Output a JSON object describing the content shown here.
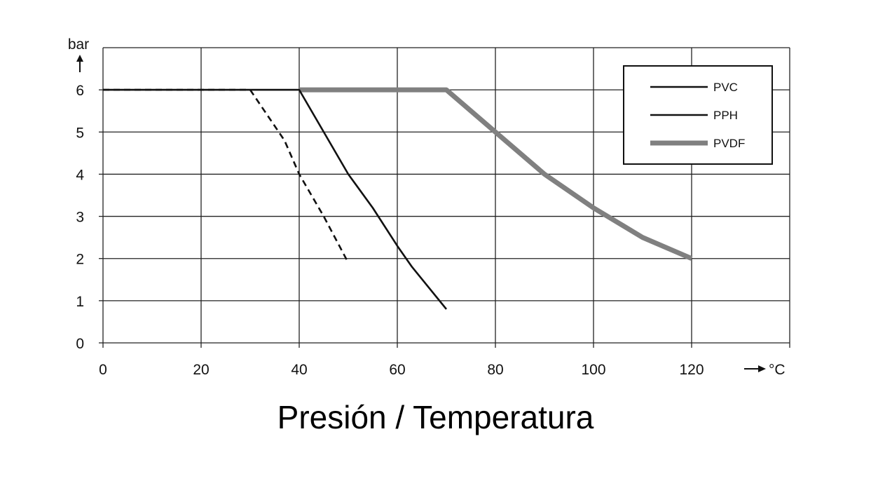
{
  "chart_data": {
    "type": "line",
    "title": "Presión / Temperatura",
    "ylabel": "bar",
    "xlabel": "°C",
    "xlim": [
      0,
      140
    ],
    "ylim": [
      0,
      7
    ],
    "xticks": [
      0,
      20,
      40,
      60,
      80,
      100,
      120
    ],
    "yticks": [
      0,
      1,
      2,
      3,
      4,
      5,
      6
    ],
    "grid": true,
    "legend_position": "top-right",
    "series": [
      {
        "name": "PVC",
        "color": "#111111",
        "style": "dashed",
        "points": [
          [
            0,
            6
          ],
          [
            30,
            6
          ],
          [
            37,
            4.8
          ],
          [
            40,
            4
          ],
          [
            45,
            3
          ],
          [
            50,
            1.9
          ]
        ]
      },
      {
        "name": "PPH",
        "color": "#111111",
        "style": "solid",
        "points": [
          [
            0,
            6
          ],
          [
            40,
            6
          ],
          [
            50,
            4
          ],
          [
            55,
            3.2
          ],
          [
            60,
            2.3
          ],
          [
            63,
            1.8
          ],
          [
            70,
            0.8
          ]
        ]
      },
      {
        "name": "PVDF",
        "color": "#808080",
        "style": "thick",
        "points": [
          [
            40,
            6
          ],
          [
            70,
            6
          ],
          [
            80,
            5
          ],
          [
            90,
            4
          ],
          [
            100,
            3.2
          ],
          [
            110,
            2.5
          ],
          [
            120,
            2
          ]
        ]
      }
    ]
  }
}
